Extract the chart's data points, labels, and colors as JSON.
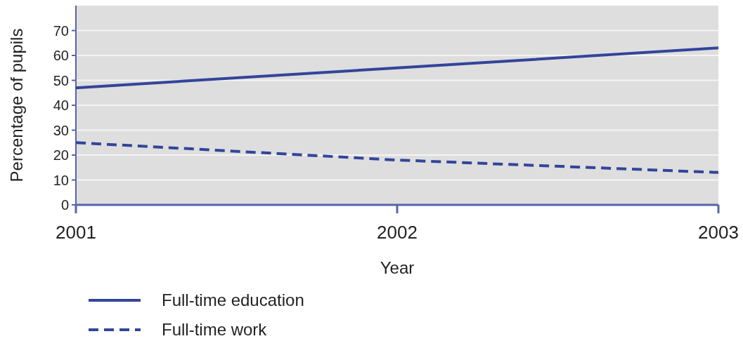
{
  "chart_data": {
    "type": "line",
    "xlabel": "Year",
    "ylabel": "Percentage of pupils",
    "x": [
      2001,
      2002,
      2003
    ],
    "xlim": [
      2001,
      2003
    ],
    "xticks": [
      2001,
      2002,
      2003
    ],
    "ylim": [
      0,
      80
    ],
    "yticks": [
      0,
      10,
      20,
      30,
      40,
      50,
      60,
      70
    ],
    "grid": "y",
    "legend": "bottom",
    "series": [
      {
        "name": "Full-time education",
        "color": "#33449a",
        "values": [
          47,
          55,
          63
        ],
        "line_style": "solid"
      },
      {
        "name": "Full-time work",
        "color": "#33449a",
        "values": [
          25,
          18,
          13
        ],
        "line_style": "dashed"
      }
    ]
  }
}
